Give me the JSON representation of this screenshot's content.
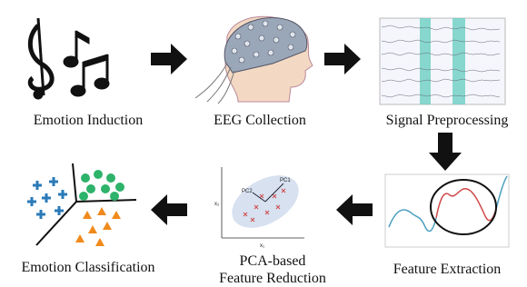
{
  "nodes": [
    {
      "label": "Emotion Induction"
    },
    {
      "label": "EEG Collection"
    },
    {
      "label": "Signal Preprocessing"
    },
    {
      "label": "Feature Extraction"
    },
    {
      "label": [
        "PCA-based",
        "Feature Reduction"
      ],
      "annotations": [
        "PC1",
        "PC2"
      ],
      "axis_labels": [
        "x₂",
        "x₁"
      ]
    },
    {
      "label": "Emotion Classification"
    }
  ]
}
